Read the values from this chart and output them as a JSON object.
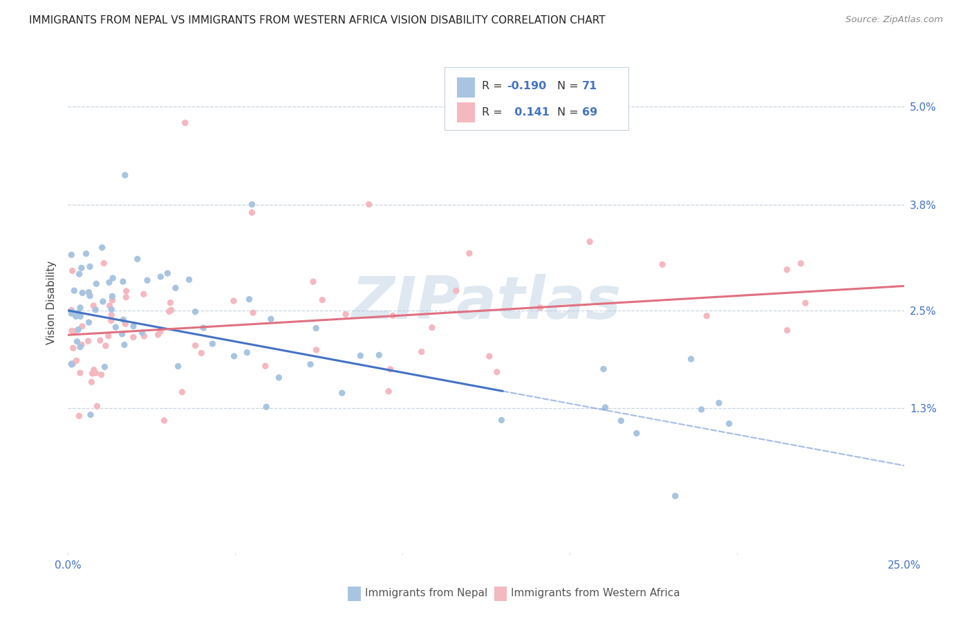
{
  "title": "IMMIGRANTS FROM NEPAL VS IMMIGRANTS FROM WESTERN AFRICA VISION DISABILITY CORRELATION CHART",
  "source": "Source: ZipAtlas.com",
  "ylabel": "Vision Disability",
  "ytick_vals": [
    0.013,
    0.025,
    0.038,
    0.05
  ],
  "ytick_labels": [
    "1.3%",
    "2.5%",
    "3.8%",
    "5.0%"
  ],
  "xlim": [
    0.0,
    0.25
  ],
  "ylim": [
    -0.005,
    0.057
  ],
  "color_nepal": "#a8c4e0",
  "color_w_africa": "#f4b8c0",
  "color_nepal_line": "#4472c4",
  "color_w_africa_line": "#e07080",
  "watermark": "ZIPatlas",
  "background_color": "#ffffff",
  "legend_box_color": "#e8eef5",
  "grid_color": "#c8d4e0"
}
